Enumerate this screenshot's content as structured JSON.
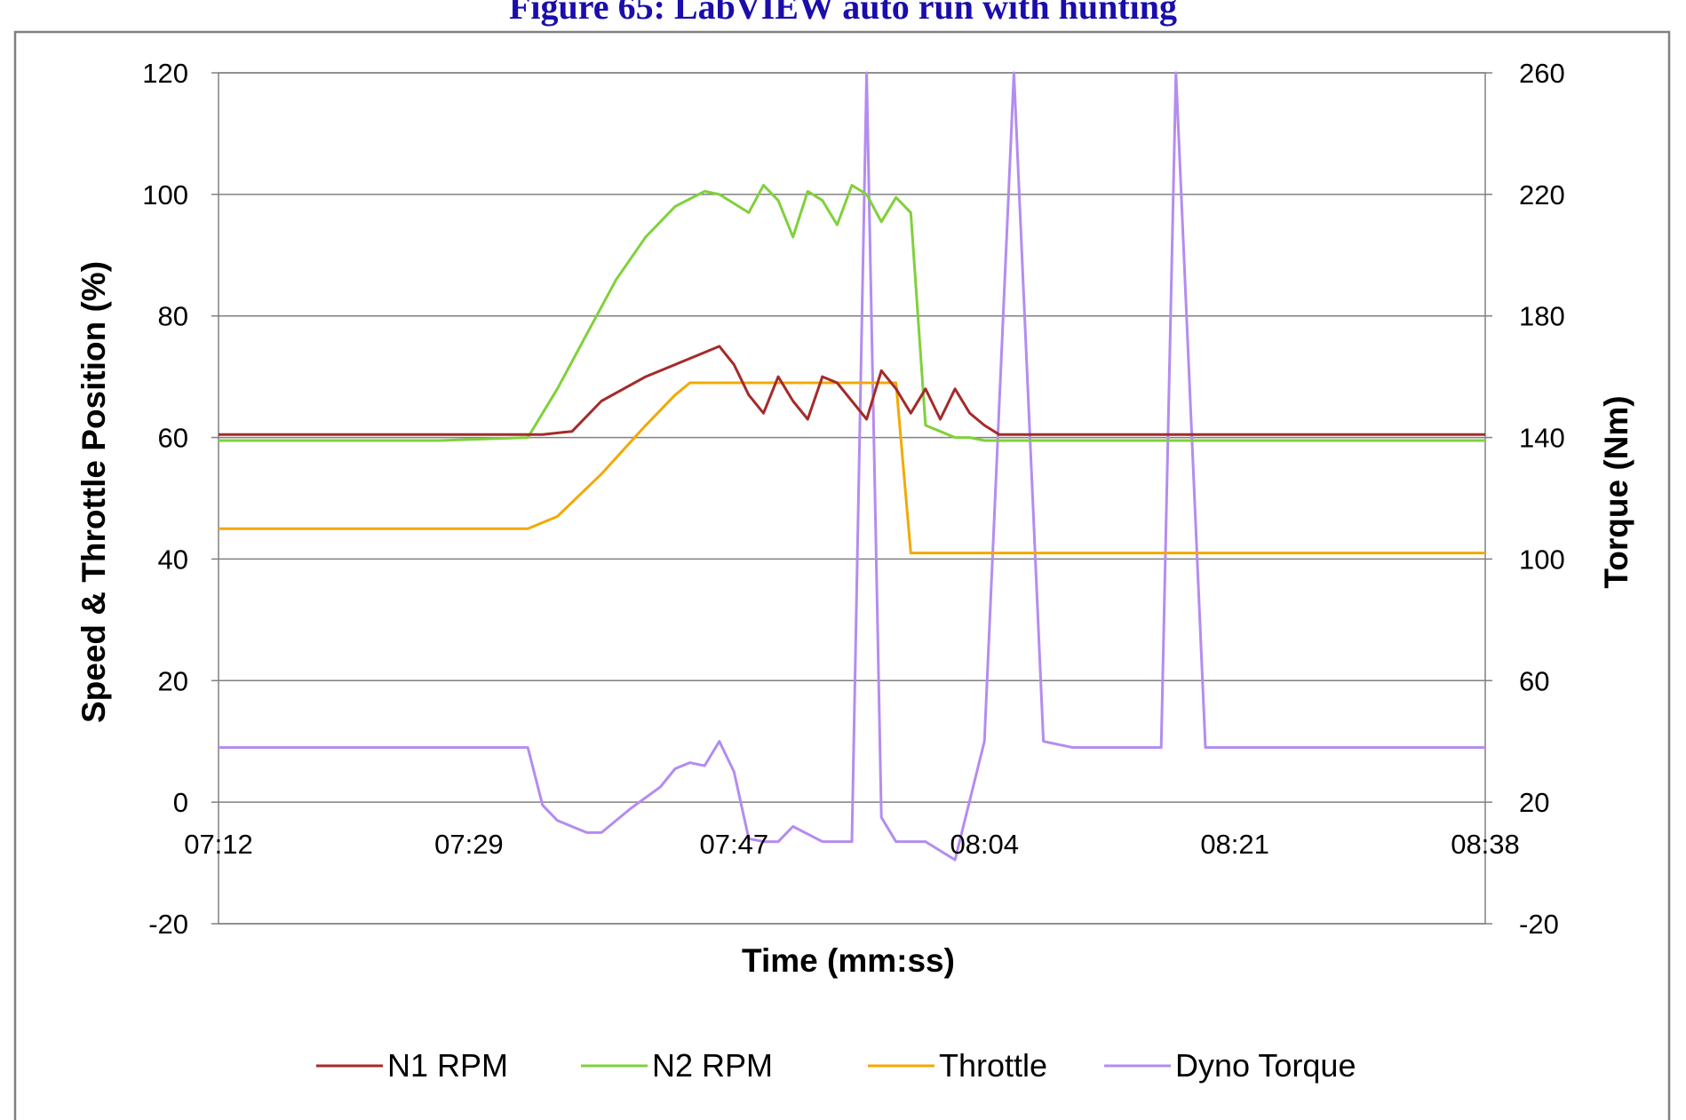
{
  "figure_title": "Figure 65: LabVIEW auto run with hunting",
  "chart_data": {
    "type": "line",
    "title": "",
    "xlabel": "Time (mm:ss)",
    "ylabel": "Speed  & Throttle Position (%)",
    "y2label": "Torque (Nm)",
    "ylim": [
      -20,
      120
    ],
    "y2lim": [
      -20,
      260
    ],
    "y_ticks": [
      -20,
      0,
      20,
      40,
      60,
      80,
      100,
      120
    ],
    "y2_ticks": [
      -20,
      20,
      60,
      100,
      140,
      180,
      220,
      260
    ],
    "x_ticks": [
      "07:12",
      "07:29",
      "07:47",
      "08:04",
      "08:21",
      "08:38"
    ],
    "x_range_seconds": [
      432,
      518
    ],
    "grid": true,
    "legend_position": "bottom",
    "colors": {
      "N1 RPM": "#a52a2a",
      "N2 RPM": "#7fd13a",
      "Throttle": "#f2a900",
      "Dyno Torque": "#b48cf0",
      "grid": "#808080",
      "plot_border": "#808080",
      "frame": "#808080"
    },
    "series": [
      {
        "name": "N1 RPM",
        "axis": "left",
        "color": "#a52a2a",
        "x": [
          "07:12",
          "07:27",
          "07:34",
          "07:36",
          "07:38",
          "07:41",
          "07:44",
          "07:46",
          "07:47",
          "07:48",
          "07:49",
          "07:50",
          "07:51",
          "07:52",
          "07:53",
          "07:54",
          "07:55",
          "07:56",
          "07:57",
          "07:58",
          "07:59",
          "08:00",
          "08:01",
          "08:02",
          "08:03",
          "08:04",
          "08:05",
          "08:06",
          "08:07",
          "08:38"
        ],
        "values": [
          60.5,
          60.5,
          60.5,
          61,
          66,
          70,
          73,
          75,
          72,
          67,
          64,
          70,
          66,
          63,
          70,
          69,
          66,
          63,
          71,
          68,
          64,
          68,
          63,
          68,
          64,
          62,
          60.5,
          60.5,
          60.5,
          60.5
        ]
      },
      {
        "name": "N2 RPM",
        "axis": "left",
        "color": "#7fd13a",
        "x": [
          "07:12",
          "07:27",
          "07:33",
          "07:35",
          "07:37",
          "07:39",
          "07:41",
          "07:43",
          "07:45",
          "07:46",
          "07:48",
          "07:49",
          "07:50",
          "07:51",
          "07:52",
          "07:53",
          "07:54",
          "07:55",
          "07:56",
          "07:57",
          "07:58",
          "07:59",
          "08:00",
          "08:01",
          "08:02",
          "08:03",
          "08:04",
          "08:05",
          "08:06",
          "08:38"
        ],
        "values": [
          59.5,
          59.5,
          60,
          68,
          77,
          86,
          93,
          98,
          100.5,
          100,
          97,
          101.5,
          99,
          93,
          100.5,
          99,
          95,
          101.5,
          100,
          95.5,
          99.5,
          97,
          62,
          61,
          60,
          60,
          59.5,
          59.5,
          59.5,
          59.5
        ]
      },
      {
        "name": "Throttle",
        "axis": "left",
        "color": "#f2a900",
        "x": [
          "07:12",
          "07:33",
          "07:35",
          "07:38",
          "07:41",
          "07:43",
          "07:44",
          "07:50",
          "07:57",
          "07:58",
          "07:59",
          "08:00",
          "08:38"
        ],
        "values": [
          45,
          45,
          47,
          54,
          62,
          67,
          69,
          69,
          69,
          69,
          41,
          41,
          41
        ]
      },
      {
        "name": "Dyno Torque",
        "axis": "right",
        "color": "#b48cf0",
        "x": [
          "07:12",
          "07:33",
          "07:34",
          "07:35",
          "07:37",
          "07:38",
          "07:40",
          "07:42",
          "07:43",
          "07:44",
          "07:45",
          "07:46",
          "07:47",
          "07:48",
          "07:49",
          "07:50",
          "07:51",
          "07:53",
          "07:54",
          "07:55",
          "07:56",
          "07:57",
          "07:58",
          "08:00",
          "08:02",
          "08:04",
          "08:06",
          "08:08",
          "08:10",
          "08:12",
          "08:14",
          "08:16",
          "08:17",
          "08:19",
          "08:38"
        ],
        "values": [
          38,
          38,
          19,
          14,
          10,
          10,
          18,
          25,
          31,
          33,
          32,
          40,
          30,
          8,
          7,
          7,
          12,
          7,
          7,
          7,
          260,
          15,
          7,
          7,
          1,
          40,
          260,
          40,
          38,
          38,
          38,
          38,
          260,
          38,
          38
        ]
      }
    ]
  }
}
